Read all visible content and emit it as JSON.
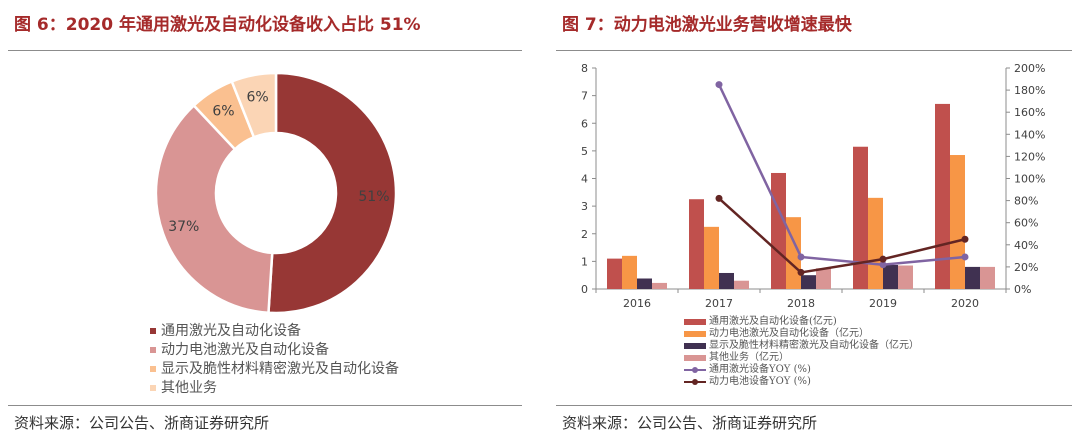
{
  "left": {
    "title": "图 6：2020 年通用激光及自动化设备收入占比 51%",
    "source": "资料来源：公司公告、浙商证券研究所",
    "chart_data": {
      "type": "pie",
      "donut": true,
      "categories": [
        "通用激光及自动化设备",
        "动力电池激光及自动化设备",
        "显示及脆性材料精密激光及自动化设备",
        "其他业务"
      ],
      "values": [
        51,
        37,
        6,
        6
      ],
      "value_labels": [
        "51%",
        "37%",
        "6%",
        "6%"
      ],
      "colors": [
        "#973735",
        "#d99594",
        "#fac090",
        "#fbd5b5"
      ],
      "legend_position": "bottom"
    }
  },
  "right": {
    "title": "图 7：动力电池激光业务营收增速最快",
    "source": "资料来源：公司公告、浙商证券研究所",
    "chart_data": {
      "type": "bar",
      "categories": [
        "2016",
        "2017",
        "2018",
        "2019",
        "2020"
      ],
      "series": [
        {
          "name": "通用激光及自动化设备(亿元)",
          "kind": "bar",
          "axis": "left",
          "color": "#c0504d",
          "values": [
            1.1,
            3.25,
            4.2,
            5.15,
            6.7
          ]
        },
        {
          "name": "动力电池激光及自动化设备（亿元）",
          "kind": "bar",
          "axis": "left",
          "color": "#f79646",
          "values": [
            1.2,
            2.25,
            2.6,
            3.3,
            4.85
          ]
        },
        {
          "name": "显示及脆性材料精密激光及自动化设备（亿元）",
          "kind": "bar",
          "axis": "left",
          "color": "#403151",
          "values": [
            0.38,
            0.58,
            0.5,
            0.87,
            0.8
          ]
        },
        {
          "name": "其他业务（亿元）",
          "kind": "bar",
          "axis": "left",
          "color": "#d99594",
          "values": [
            0.22,
            0.3,
            0.75,
            0.85,
            0.8
          ]
        },
        {
          "name": "通用激光设备YOY (%)",
          "kind": "line",
          "axis": "right",
          "color": "#8064a2",
          "values": [
            null,
            185,
            29,
            22,
            29
          ]
        },
        {
          "name": "动力电池设备YOY (%)",
          "kind": "line",
          "axis": "right",
          "color": "#632523",
          "values": [
            null,
            82,
            15,
            27,
            45
          ]
        }
      ],
      "y_left": {
        "min": 0,
        "max": 8,
        "ticks": [
          "0",
          "1",
          "2",
          "3",
          "4",
          "5",
          "6",
          "7",
          "8"
        ]
      },
      "y_right": {
        "min": 0,
        "max": 200,
        "ticks": [
          "0%",
          "20%",
          "40%",
          "60%",
          "80%",
          "100%",
          "120%",
          "140%",
          "160%",
          "180%",
          "200%"
        ]
      },
      "grid": false,
      "legend_position": "bottom"
    }
  }
}
